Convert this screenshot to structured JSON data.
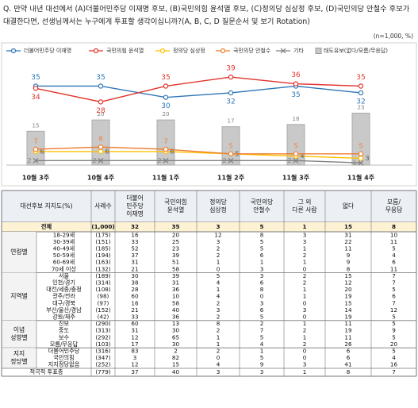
{
  "chart_data": {
    "type": "line",
    "title": "Q. 만약 내년 대선에서 (A)더불어민주당 이재명 후보, (B)국민의힘 윤석열 후보, (C)정의당 심상정 후보, (D)국민의당 안철수 후보가 대결한다면, 선생님께서는 누구에게 투표할 생각이십니까?(A, B, C, D 질문순서 및 보기 Rotation)",
    "subtitle": "(n=1,000, %)",
    "categories": [
      "10월 3주",
      "10월 4주",
      "11월 1주",
      "11월 2주",
      "11월 3주",
      "11월 4주"
    ],
    "ylim": [
      0,
      45
    ],
    "series": [
      {
        "name": "더불어민주당 이재명",
        "color": "#2e75b6",
        "kind": "line",
        "marker": "circle",
        "values": [
          35,
          35,
          30,
          32,
          35,
          32
        ]
      },
      {
        "name": "국민의힘 윤석열",
        "color": "#e0342c",
        "kind": "line",
        "marker": "circle",
        "values": [
          34,
          28,
          35,
          39,
          36,
          35
        ]
      },
      {
        "name": "정의당 심상정",
        "color": "#ffc000",
        "kind": "line",
        "marker": "circle",
        "values": [
          6,
          6,
          6,
          5,
          4,
          3
        ]
      },
      {
        "name": "국민의당 안철수",
        "color": "#ed7d31",
        "kind": "line",
        "marker": "circle",
        "values": [
          7,
          8,
          7,
          5,
          5,
          5
        ]
      },
      {
        "name": "기타",
        "color": "#808080",
        "kind": "line",
        "marker": "x",
        "values": [
          2,
          2,
          2,
          2,
          2,
          1
        ]
      },
      {
        "name": "태도유보(없다/모름/무응답)",
        "color": "#c9c9c9",
        "kind": "bar",
        "values": [
          15,
          20,
          20,
          17,
          18,
          23
        ]
      }
    ]
  },
  "table": {
    "header": [
      [
        "대선후보 지지도(%)"
      ],
      [
        "사례수"
      ],
      [
        "더불어",
        "민주당",
        "이재명"
      ],
      [
        "국민의힘",
        "윤석열"
      ],
      [
        "정의당",
        "심상정"
      ],
      [
        "국민의당",
        "안철수"
      ],
      [
        "그 외",
        "다른 사람"
      ],
      [
        "없다"
      ],
      [
        "모름/",
        "무응답"
      ]
    ],
    "total": {
      "label": "전체",
      "n": "(1,000)",
      "values": [
        32,
        35,
        3,
        5,
        1,
        15,
        8
      ]
    },
    "groups": [
      {
        "name": [
          "연령별"
        ],
        "rows": [
          {
            "label": "18-29세",
            "n": "(175)",
            "values": [
              16,
              20,
              12,
              8,
              3,
              31,
              10
            ]
          },
          {
            "label": "30-39세",
            "n": "(151)",
            "values": [
              33,
              25,
              3,
              5,
              3,
              22,
              11
            ]
          },
          {
            "label": "40-49세",
            "n": "(185)",
            "values": [
              52,
              23,
              2,
              5,
              1,
              11,
              5
            ]
          },
          {
            "label": "50-59세",
            "n": "(194)",
            "values": [
              37,
              39,
              2,
              6,
              2,
              9,
              4
            ]
          },
          {
            "label": "60-69세",
            "n": "(163)",
            "values": [
              31,
              51,
              1,
              1,
              1,
              9,
              6
            ]
          },
          {
            "label": "70세 이상",
            "n": "(132)",
            "values": [
              21,
              58,
              0,
              3,
              0,
              8,
              11
            ]
          }
        ]
      },
      {
        "name": [
          "지역별"
        ],
        "rows": [
          {
            "label": "서울",
            "n": "(189)",
            "values": [
              30,
              39,
              5,
              3,
              2,
              15,
              7
            ]
          },
          {
            "label": "인천/경기",
            "n": "(314)",
            "values": [
              38,
              31,
              4,
              6,
              2,
              12,
              7
            ]
          },
          {
            "label": "대전/세종/충청",
            "n": "(108)",
            "values": [
              28,
              36,
              1,
              8,
              1,
              20,
              5
            ]
          },
          {
            "label": "광주/전라",
            "n": "(98)",
            "values": [
              60,
              10,
              4,
              0,
              1,
              19,
              6
            ]
          },
          {
            "label": "대구/경북",
            "n": "(97)",
            "values": [
              16,
              58,
              2,
              3,
              0,
              15,
              7
            ]
          },
          {
            "label": "부산/울산/경남",
            "n": "(152)",
            "values": [
              21,
              40,
              3,
              6,
              3,
              14,
              12
            ]
          },
          {
            "label": "강원/제주",
            "n": "(42)",
            "values": [
              33,
              36,
              2,
              5,
              0,
              19,
              5
            ]
          }
        ]
      },
      {
        "name": [
          "이념",
          "성향별"
        ],
        "rows": [
          {
            "label": "진보",
            "n": "(290)",
            "values": [
              60,
              13,
              8,
              2,
              1,
              11,
              5
            ]
          },
          {
            "label": "중도",
            "n": "(313)",
            "values": [
              31,
              30,
              2,
              7,
              2,
              19,
              9
            ]
          },
          {
            "label": "보수",
            "n": "(292)",
            "values": [
              12,
              65,
              1,
              5,
              1,
              11,
              5
            ]
          },
          {
            "label": "모름/무응답",
            "n": "(103)",
            "values": [
              17,
              30,
              1,
              4,
              2,
              26,
              20
            ]
          }
        ]
      },
      {
        "name": [
          "지지",
          "정당별"
        ],
        "rows": [
          {
            "label": "더불어민주당",
            "n": "(316)",
            "values": [
              83,
              2,
              2,
              1,
              0,
              6,
              5
            ]
          },
          {
            "label": "국민의힘",
            "n": "(347)",
            "values": [
              3,
              82,
              0,
              5,
              0,
              6,
              4
            ]
          },
          {
            "label": "지지정당없음",
            "n": "(252)",
            "values": [
              12,
              15,
              4,
              9,
              3,
              41,
              16
            ]
          }
        ]
      }
    ],
    "footer": {
      "label": "적극적 투표층",
      "n": "(779)",
      "values": [
        37,
        40,
        3,
        3,
        1,
        8,
        7
      ]
    }
  }
}
